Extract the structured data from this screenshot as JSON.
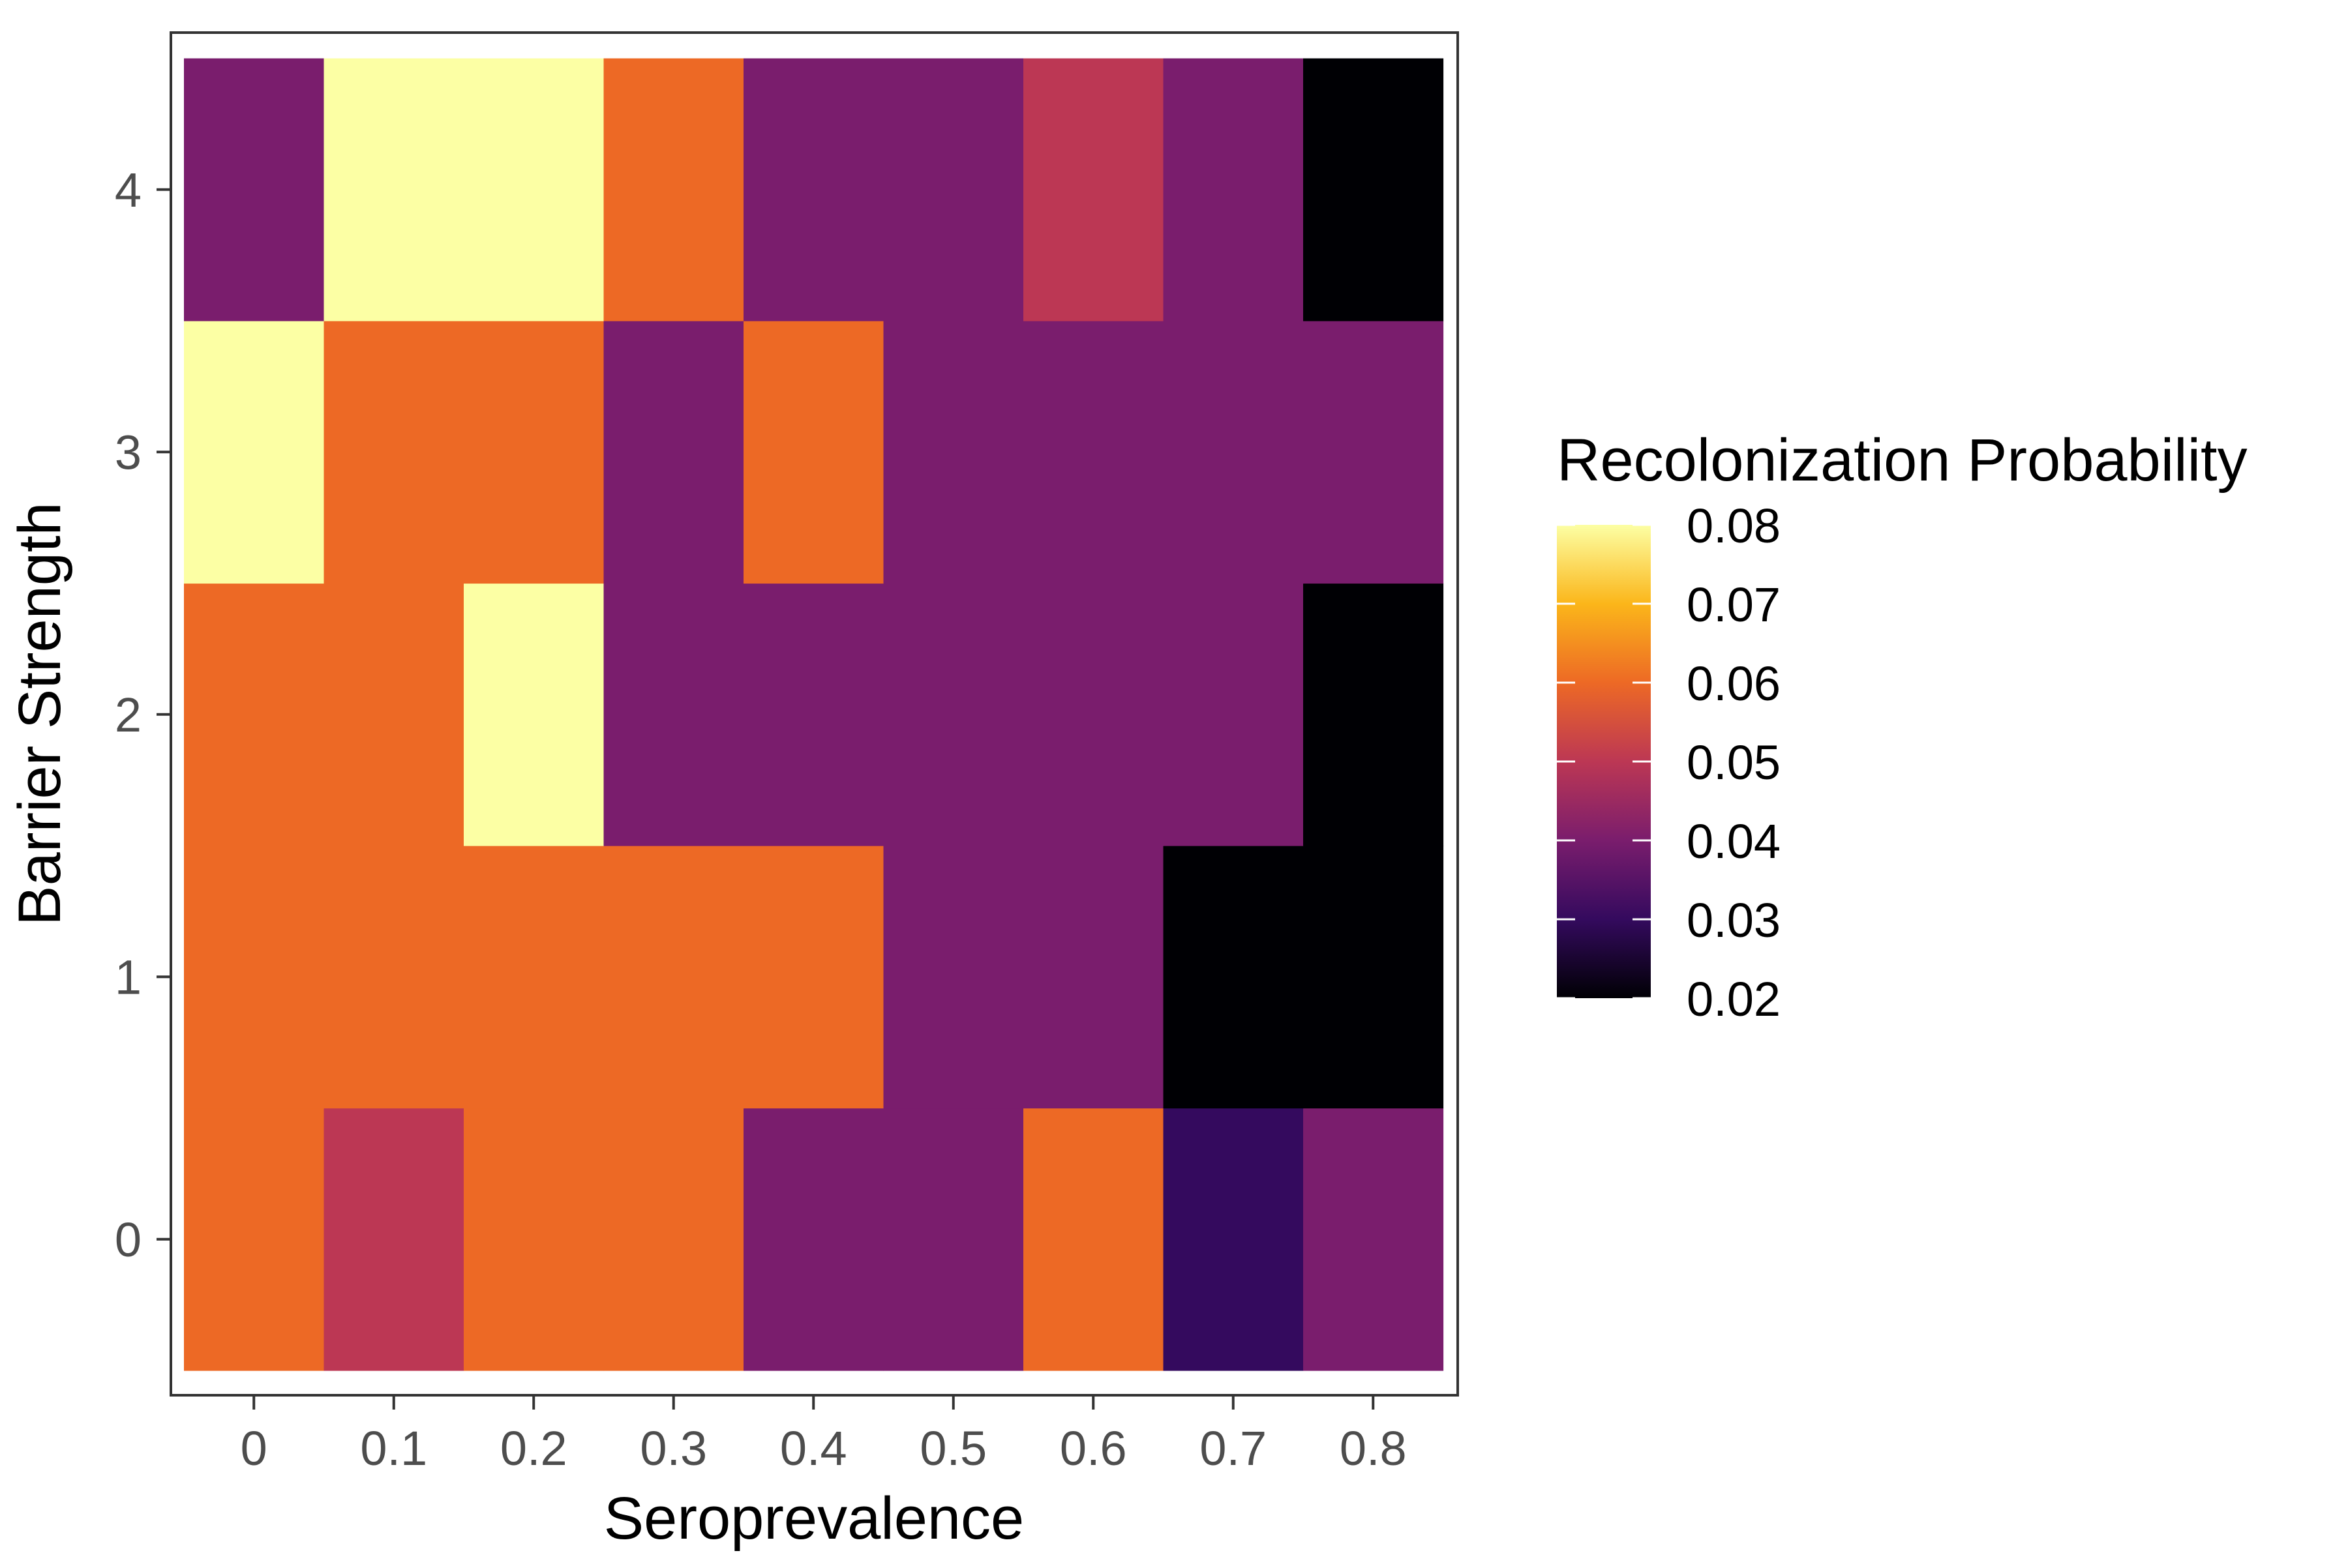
{
  "chart_data": {
    "type": "heatmap",
    "title": "",
    "xlabel": "Seroprevalence",
    "ylabel": "Barrier Strength",
    "x": [
      "0",
      "0.1",
      "0.2",
      "0.3",
      "0.4",
      "0.5",
      "0.6",
      "0.7",
      "0.8"
    ],
    "y": [
      "0",
      "1",
      "2",
      "3",
      "4"
    ],
    "values": [
      [
        0.06,
        0.05,
        0.06,
        0.06,
        0.04,
        0.04,
        0.06,
        0.03,
        0.04
      ],
      [
        0.06,
        0.06,
        0.06,
        0.06,
        0.06,
        0.04,
        0.04,
        0.02,
        0.02
      ],
      [
        0.06,
        0.06,
        0.08,
        0.04,
        0.04,
        0.04,
        0.04,
        0.04,
        0.02
      ],
      [
        0.08,
        0.06,
        0.06,
        0.04,
        0.06,
        0.04,
        0.04,
        0.04,
        0.04
      ],
      [
        0.04,
        0.08,
        0.08,
        0.06,
        0.04,
        0.04,
        0.05,
        0.04,
        0.02
      ]
    ],
    "legend": {
      "title": "Recolonization Probability",
      "ticks": [
        "0.02",
        "0.03",
        "0.04",
        "0.05",
        "0.06",
        "0.07",
        "0.08"
      ],
      "range": [
        0.02,
        0.08
      ],
      "position": "right"
    },
    "colorscale": "inferno",
    "color_stops": [
      {
        "v": 0.02,
        "color": "#000004"
      },
      {
        "v": 0.03,
        "color": "#340a5e"
      },
      {
        "v": 0.04,
        "color": "#7a1d6d"
      },
      {
        "v": 0.05,
        "color": "#bc3754"
      },
      {
        "v": 0.06,
        "color": "#ed6925"
      },
      {
        "v": 0.07,
        "color": "#fbb61a"
      },
      {
        "v": 0.08,
        "color": "#fcffa4"
      }
    ],
    "grid": false
  }
}
